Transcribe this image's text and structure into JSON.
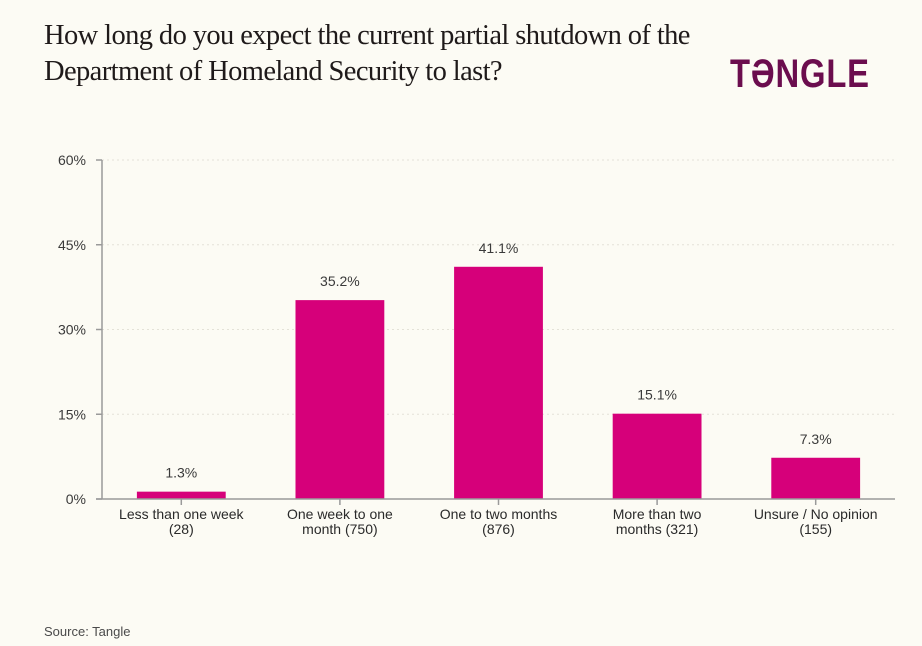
{
  "header": {
    "logo_text": "TƏNGLE"
  },
  "footer": {
    "source": "Source: Tangle"
  },
  "colors": {
    "background": "#fcfbf4",
    "bar": "#d6007a",
    "logo": "#6b0d4e",
    "axis": "#9a9a9a",
    "grid": "#e4e2d8"
  },
  "chart_data": {
    "type": "bar",
    "title": "How long do you expect the current partial shutdown of the Department of Homeland Security to last?",
    "xlabel": "",
    "ylabel": "",
    "ylim": [
      0,
      60
    ],
    "yticks": [
      0,
      15,
      30,
      45,
      60
    ],
    "ytick_labels": [
      "0%",
      "15%",
      "30%",
      "45%",
      "60%"
    ],
    "grid": true,
    "categories": [
      [
        "Less than one week",
        "(28)"
      ],
      [
        "One week to one",
        "month (750)"
      ],
      [
        "One to two months",
        "(876)"
      ],
      [
        "More than two",
        "months (321)"
      ],
      [
        "Unsure / No opinion",
        "(155)"
      ]
    ],
    "counts": [
      28,
      750,
      876,
      321,
      155
    ],
    "values": [
      1.3,
      35.2,
      41.1,
      15.1,
      7.3
    ],
    "data_labels": [
      "1.3%",
      "35.2%",
      "41.1%",
      "15.1%",
      "7.3%"
    ]
  }
}
